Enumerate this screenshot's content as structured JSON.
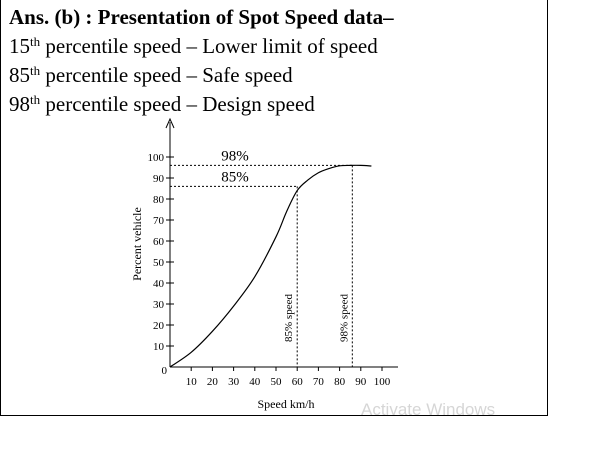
{
  "answer": {
    "heading": "Ans. (b) : Presentation of Spot Speed data–",
    "lines": [
      {
        "num": "15",
        "ordinal": "th",
        "text": " percentile speed – Lower limit of speed"
      },
      {
        "num": "85",
        "ordinal": "th",
        "text": " percentile speed – Safe speed"
      },
      {
        "num": "98",
        "ordinal": "th",
        "text": " percentile speed – Design speed"
      }
    ]
  },
  "chart_data": {
    "type": "line",
    "xlabel": "Speed km/h",
    "ylabel": "Percent vehicle",
    "xlim": [
      0,
      100
    ],
    "ylim": [
      0,
      100
    ],
    "x_ticks": [
      10,
      20,
      30,
      40,
      50,
      60,
      70,
      80,
      90,
      100
    ],
    "y_ticks": [
      10,
      20,
      30,
      40,
      50,
      60,
      70,
      80,
      90,
      100
    ],
    "origin_label": "0",
    "grid": false,
    "series": [
      {
        "x": [
          0,
          10,
          20,
          30,
          40,
          50,
          55,
          60,
          65,
          70,
          75,
          80,
          85,
          90,
          95
        ],
        "y": [
          0,
          7,
          17,
          29,
          43,
          62,
          74,
          84,
          89,
          92.5,
          94.5,
          95.8,
          96,
          96,
          95.7
        ]
      }
    ],
    "annotations": [
      {
        "text": "98%",
        "percent": 96,
        "speed": 86,
        "vertical_label": "98% speed"
      },
      {
        "text": "85%",
        "percent": 86,
        "speed": 60,
        "vertical_label": "85% speed"
      }
    ]
  },
  "watermark": "Activate Windows"
}
